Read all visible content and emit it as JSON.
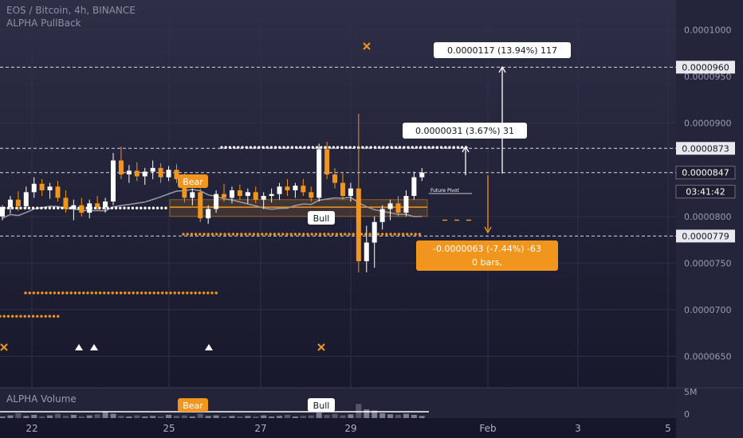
{
  "header": {
    "symbol_line": "EOS / Bitcoin, 4h, BINANCE",
    "indicator_name": "ALPHA PullBack"
  },
  "volume_pane": {
    "title": "ALPHA Volume",
    "scale_top": "5M",
    "scale_zero": "0"
  },
  "colors": {
    "bull": "#ffffff",
    "bear": "#f0961e",
    "accent_orange": "#f0961e",
    "ma_line": "#9a9aa8",
    "grid": "#2f2f48",
    "label_bg": "#ffffff"
  },
  "chart_data": {
    "type": "candlestick",
    "price_axis": {
      "ticks": [
        "0.0001000",
        "0.0000950",
        "0.0000900",
        "0.0000800",
        "0.0000750",
        "0.0000700",
        "0.0000650"
      ],
      "ylim": [
        6.18e-05,
        0.0001032
      ]
    },
    "time_axis": {
      "ticks": [
        "22",
        "25",
        "27",
        "29",
        "Feb",
        "3",
        "5"
      ]
    },
    "price_badges": [
      {
        "label": "0.0000960",
        "value": 9.6e-05,
        "style": "light"
      },
      {
        "label": "0.0000873",
        "value": 8.73e-05,
        "style": "light"
      },
      {
        "label": "0.0000847",
        "value": 8.47e-05,
        "style": "dark"
      },
      {
        "label": "03:41:42",
        "value": 8.3e-05,
        "style": "dark"
      },
      {
        "label": "0.0000779",
        "value": 7.79e-05,
        "style": "light"
      }
    ],
    "levels": [
      {
        "value": 9.6e-05,
        "style": "dashed"
      },
      {
        "value": 8.73e-05,
        "style": "dashed"
      },
      {
        "value": 8.47e-05,
        "style": "dashed"
      },
      {
        "value": 7.79e-05,
        "style": "dashed"
      }
    ],
    "candles": [
      [
        8e-05,
        8.12e-05,
        7.96e-05,
        8.1e-05
      ],
      [
        8.1e-05,
        8.22e-05,
        8.03e-05,
        8.18e-05
      ],
      [
        8.18e-05,
        8.27e-05,
        8.06e-05,
        8.11e-05
      ],
      [
        8.11e-05,
        8.32e-05,
        8.08e-05,
        8.26e-05
      ],
      [
        8.26e-05,
        8.42e-05,
        8.2e-05,
        8.35e-05
      ],
      [
        8.35e-05,
        8.4e-05,
        8.22e-05,
        8.28e-05
      ],
      [
        8.28e-05,
        8.36e-05,
        8.19e-05,
        8.32e-05
      ],
      [
        8.32e-05,
        8.38e-05,
        8.16e-05,
        8.2e-05
      ],
      [
        8.2e-05,
        8.28e-05,
        8.04e-05,
        8.08e-05
      ],
      [
        8.08e-05,
        8.18e-05,
        7.96e-05,
        8.12e-05
      ],
      [
        8.12e-05,
        8.2e-05,
        8e-05,
        8.04e-05
      ],
      [
        8.04e-05,
        8.18e-05,
        7.98e-05,
        8.14e-05
      ],
      [
        8.14e-05,
        8.22e-05,
        8.06e-05,
        8.1e-05
      ],
      [
        8.1e-05,
        8.2e-05,
        8.04e-05,
        8.16e-05
      ],
      [
        8.16e-05,
        8.68e-05,
        8.12e-05,
        8.6e-05
      ],
      [
        8.6e-05,
        8.75e-05,
        8.4e-05,
        8.45e-05
      ],
      [
        8.45e-05,
        8.55e-05,
        8.36e-05,
        8.49e-05
      ],
      [
        8.49e-05,
        8.58e-05,
        8.38e-05,
        8.43e-05
      ],
      [
        8.43e-05,
        8.52e-05,
        8.34e-05,
        8.48e-05
      ],
      [
        8.48e-05,
        8.6e-05,
        8.4e-05,
        8.52e-05
      ],
      [
        8.52e-05,
        8.57e-05,
        8.36e-05,
        8.42e-05
      ],
      [
        8.42e-05,
        8.54e-05,
        8.38e-05,
        8.5e-05
      ],
      [
        8.5e-05,
        8.56e-05,
        8.36e-05,
        8.4e-05
      ],
      [
        8.4e-05,
        8.46e-05,
        8.15e-05,
        8.2e-05
      ],
      [
        8.2e-05,
        8.3e-05,
        8.12e-05,
        8.26e-05
      ],
      [
        8.26e-05,
        8.3e-05,
        7.94e-05,
        7.98e-05
      ],
      [
        7.98e-05,
        8.12e-05,
        7.92e-05,
        8.08e-05
      ],
      [
        8.08e-05,
        8.28e-05,
        8.04e-05,
        8.24e-05
      ],
      [
        8.24e-05,
        8.35e-05,
        8.16e-05,
        8.2e-05
      ],
      [
        8.2e-05,
        8.32e-05,
        8.14e-05,
        8.28e-05
      ],
      [
        8.28e-05,
        8.34e-05,
        8.18e-05,
        8.22e-05
      ],
      [
        8.22e-05,
        8.3e-05,
        8.14e-05,
        8.26e-05
      ],
      [
        8.26e-05,
        8.32e-05,
        8.14e-05,
        8.18e-05
      ],
      [
        8.18e-05,
        8.26e-05,
        8.08e-05,
        8.22e-05
      ],
      [
        8.22e-05,
        8.3e-05,
        8.15e-05,
        8.24e-05
      ],
      [
        8.24e-05,
        8.36e-05,
        8.18e-05,
        8.32e-05
      ],
      [
        8.32e-05,
        8.4e-05,
        8.22e-05,
        8.28e-05
      ],
      [
        8.28e-05,
        8.36e-05,
        8.2e-05,
        8.33e-05
      ],
      [
        8.33e-05,
        8.4e-05,
        8.22e-05,
        8.26e-05
      ],
      [
        8.26e-05,
        8.32e-05,
        8.16e-05,
        8.2e-05
      ],
      [
        8.2e-05,
        8.78e-05,
        8.16e-05,
        8.72e-05
      ],
      [
        8.72e-05,
        8.8e-05,
        8.4e-05,
        8.45e-05
      ],
      [
        8.45e-05,
        8.52e-05,
        8.3e-05,
        8.36e-05
      ],
      [
        8.36e-05,
        8.46e-05,
        8.18e-05,
        8.22e-05
      ],
      [
        8.22e-05,
        8.36e-05,
        8.16e-05,
        8.3e-05
      ],
      [
        8.3e-05,
        9.1e-05,
        7.4e-05,
        7.52e-05
      ],
      [
        7.52e-05,
        7.9e-05,
        7.4e-05,
        7.72e-05
      ],
      [
        7.72e-05,
        8e-05,
        7.45e-05,
        7.94e-05
      ],
      [
        7.94e-05,
        8.12e-05,
        7.86e-05,
        8.08e-05
      ],
      [
        8.08e-05,
        8.18e-05,
        7.96e-05,
        8.14e-05
      ],
      [
        8.14e-05,
        8.22e-05,
        8e-05,
        8.04e-05
      ],
      [
        8.04e-05,
        8.28e-05,
        8e-05,
        8.22e-05
      ],
      [
        8.22e-05,
        8.48e-05,
        8.18e-05,
        8.42e-05
      ],
      [
        8.42e-05,
        8.52e-05,
        8.38e-05,
        8.47e-05
      ]
    ],
    "volume": [
      0.3,
      0.5,
      0.9,
      0.4,
      0.6,
      0.3,
      0.5,
      0.8,
      0.4,
      0.6,
      0.3,
      0.5,
      0.7,
      1.1,
      0.8,
      0.4,
      0.3,
      0.5,
      0.3,
      0.4,
      0.3,
      0.6,
      0.4,
      0.5,
      0.3,
      0.8,
      0.4,
      0.5,
      0.3,
      0.4,
      0.3,
      0.4,
      0.3,
      0.5,
      0.3,
      0.4,
      0.6,
      0.3,
      0.4,
      0.5,
      1.0,
      0.6,
      0.8,
      0.5,
      0.7,
      2.6,
      1.6,
      1.4,
      0.9,
      0.7,
      0.6,
      0.8,
      0.6,
      0.4
    ],
    "volume_ylim": [
      0,
      5
    ],
    "annotations": [
      {
        "text": "0.0000117 (13.94%) 117",
        "kind": "measure-up"
      },
      {
        "text": "0.0000031 (3.67%) 31",
        "kind": "measure-up"
      },
      {
        "text": "-0.0000063 (-7.44%) -63",
        "kind": "measure-down"
      },
      {
        "text": "0 bars,",
        "kind": "measure-down"
      },
      {
        "text": "Bear",
        "kind": "signal-bear"
      },
      {
        "text": "Bull",
        "kind": "signal-bull"
      },
      {
        "text": "Future Pivot",
        "kind": "note"
      }
    ]
  }
}
